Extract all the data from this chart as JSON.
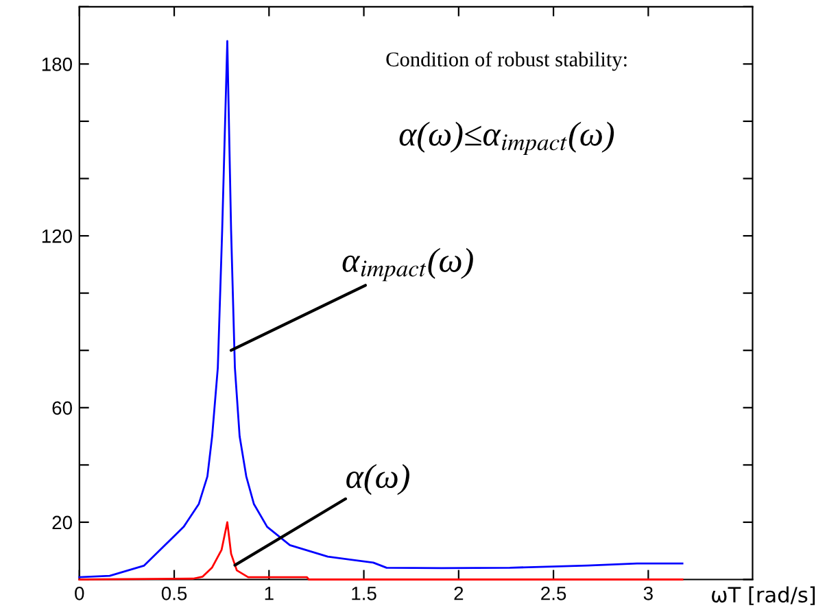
{
  "chart_data": {
    "type": "line",
    "xlabel": "ωT [rad/s]",
    "xlim": [
      0,
      3.55
    ],
    "ylim": [
      0,
      200
    ],
    "xticks": [
      0,
      0.5,
      1,
      1.5,
      2,
      2.5,
      3
    ],
    "yticks": [
      {
        "value": 0,
        "label": null
      },
      20,
      {
        "value": 40,
        "label": null
      },
      60,
      {
        "value": 80,
        "label": null
      },
      {
        "value": 100,
        "label": null
      },
      120,
      {
        "value": 140,
        "label": null
      },
      {
        "value": 160,
        "label": null
      },
      180,
      {
        "value": 200,
        "label": null
      }
    ],
    "grid": false,
    "marker": "none",
    "line_style": "solid",
    "series": [
      {
        "color": "#0000ff",
        "x": [
          0,
          0.16,
          0.34,
          0.55,
          0.63,
          0.675,
          0.7,
          0.73,
          0.753,
          0.78,
          0.8,
          0.82,
          0.845,
          0.88,
          0.92,
          0.99,
          1.11,
          1.31,
          1.55,
          1.62,
          1.91,
          2.27,
          2.68,
          2.94,
          3.18
        ],
        "values": [
          0.8,
          1.3,
          4.8,
          18.4,
          26.4,
          36,
          50,
          74,
          122,
          188,
          122,
          74,
          50,
          36,
          26.4,
          18.4,
          12,
          8,
          5.9,
          4.1,
          4,
          4.1,
          4.9,
          5.6,
          5.6
        ]
      },
      {
        "color": "#ff0000",
        "x": [
          0,
          0.6,
          0.65,
          0.7,
          0.75,
          0.78,
          0.8,
          0.83,
          0.89,
          1.2,
          1.21,
          3.18
        ],
        "values": [
          0,
          0.3,
          1,
          4.2,
          10.4,
          20,
          9,
          3.2,
          0.8,
          0.8,
          0,
          0
        ]
      }
    ],
    "annotations": [
      {
        "text": "α$_{impact}$(ω)",
        "x": 0.8,
        "y": 80
      },
      {
        "text": "α(ω)",
        "x": 0.82,
        "y": 5
      },
      "Condition of robust stability:",
      "α(ω)≤α$_{impact}$(ω)"
    ]
  }
}
